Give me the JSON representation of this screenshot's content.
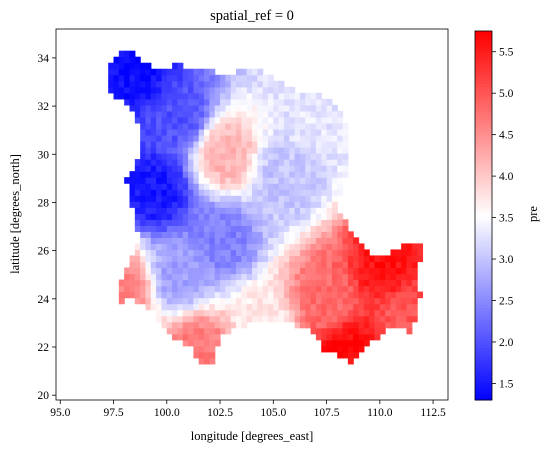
{
  "chart_data": {
    "type": "heatmap",
    "title": "spatial_ref = 0",
    "xlabel": "longitude [degrees_east]",
    "ylabel": "latitude [degrees_north]",
    "colorbar_label": "pre",
    "colormap": "bwr",
    "colors": {
      "low": "#0000ff",
      "mid": "#ffffff",
      "high": "#ff0000",
      "nodata": "#ffffff"
    },
    "xlim": [
      94.8,
      113.2
    ],
    "ylim": [
      19.8,
      35.2
    ],
    "clim": [
      1.3,
      5.75
    ],
    "x_ticks": [
      "95.0",
      "97.5",
      "100.0",
      "102.5",
      "105.0",
      "107.5",
      "110.0",
      "112.5"
    ],
    "x_tick_values": [
      95.0,
      97.5,
      100.0,
      102.5,
      105.0,
      107.5,
      110.0,
      112.5
    ],
    "y_ticks": [
      "20",
      "22",
      "24",
      "26",
      "28",
      "30",
      "32",
      "34"
    ],
    "y_tick_values": [
      20,
      22,
      24,
      26,
      28,
      30,
      32,
      34
    ],
    "colorbar_ticks": [
      "1.5",
      "2.0",
      "2.5",
      "3.0",
      "3.5",
      "4.0",
      "4.5",
      "5.0",
      "5.5"
    ],
    "colorbar_tick_values": [
      1.5,
      2.0,
      2.5,
      3.0,
      3.5,
      4.0,
      4.5,
      5.0,
      5.5
    ],
    "grid": false,
    "grid_resolution_deg": 0.25,
    "approximate_field_centers": [
      {
        "lon": 98.5,
        "lat": 33.5,
        "value": 1.4
      },
      {
        "lon": 99.5,
        "lat": 28.5,
        "value": 1.5
      },
      {
        "lon": 100.5,
        "lat": 31.5,
        "value": 2.0
      },
      {
        "lon": 102.7,
        "lat": 30.0,
        "value": 4.2
      },
      {
        "lon": 102.5,
        "lat": 26.5,
        "value": 2.4
      },
      {
        "lon": 100.5,
        "lat": 25.0,
        "value": 2.7
      },
      {
        "lon": 98.0,
        "lat": 24.5,
        "value": 4.6
      },
      {
        "lon": 101.5,
        "lat": 21.9,
        "value": 4.7
      },
      {
        "lon": 105.5,
        "lat": 29.0,
        "value": 3.0
      },
      {
        "lon": 107.0,
        "lat": 31.5,
        "value": 3.3
      },
      {
        "lon": 110.3,
        "lat": 25.2,
        "value": 5.6
      },
      {
        "lon": 108.5,
        "lat": 21.8,
        "value": 5.7
      },
      {
        "lon": 107.5,
        "lat": 24.0,
        "value": 4.8
      },
      {
        "lon": 111.0,
        "lat": 23.5,
        "value": 5.0
      },
      {
        "lon": 104.5,
        "lat": 23.0,
        "value": 3.7
      }
    ]
  }
}
